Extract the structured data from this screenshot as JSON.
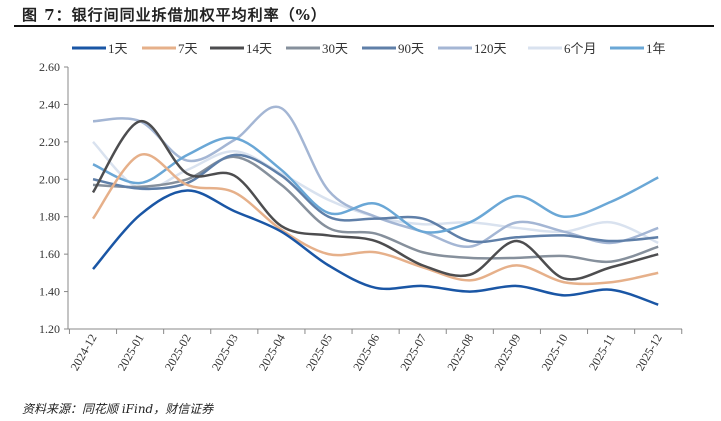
{
  "title": "图 7：银行间同业拆借加权平均利率（%）",
  "source": "资料来源：同花顺 iFind，财信证券",
  "chart_data": {
    "type": "line",
    "title": "",
    "xlabel": "",
    "ylabel": "",
    "ylim": [
      1.2,
      2.6
    ],
    "yticks": [
      "1.20",
      "1.40",
      "1.60",
      "1.80",
      "2.00",
      "2.20",
      "2.40",
      "2.60"
    ],
    "grid": false,
    "legend": "top",
    "categories": [
      "2024-12",
      "2025-01",
      "2025-02",
      "2025-03",
      "2025-04",
      "2025-05",
      "2025-06",
      "2025-07",
      "2025-08",
      "2025-09",
      "2025-10",
      "2025-11",
      "2025-12"
    ],
    "series": [
      {
        "name": "1天",
        "color": "#1a56a5",
        "values": [
          1.52,
          1.81,
          1.94,
          1.83,
          1.72,
          1.54,
          1.42,
          1.43,
          1.4,
          1.43,
          1.38,
          1.41,
          1.33
        ]
      },
      {
        "name": "7天",
        "color": "#e6b08a",
        "values": [
          1.79,
          2.13,
          1.97,
          1.93,
          1.73,
          1.6,
          1.61,
          1.53,
          1.46,
          1.54,
          1.45,
          1.45,
          1.5
        ]
      },
      {
        "name": "14天",
        "color": "#4d4d4f",
        "values": [
          1.93,
          2.31,
          2.03,
          2.02,
          1.75,
          1.7,
          1.67,
          1.54,
          1.49,
          1.67,
          1.47,
          1.53,
          1.6
        ]
      },
      {
        "name": "30天",
        "color": "#86909c",
        "values": [
          1.97,
          1.96,
          2.0,
          2.12,
          1.97,
          1.74,
          1.71,
          1.61,
          1.58,
          1.58,
          1.59,
          1.56,
          1.64
        ]
      },
      {
        "name": "90天",
        "color": "#5f7fa8",
        "values": [
          2.0,
          1.95,
          1.98,
          2.13,
          2.02,
          1.8,
          1.79,
          1.79,
          1.67,
          1.69,
          1.7,
          1.67,
          1.69
        ]
      },
      {
        "name": "120天",
        "color": "#a4b6d4",
        "values": [
          2.31,
          2.31,
          2.1,
          2.21,
          2.38,
          1.94,
          1.8,
          1.72,
          1.64,
          1.77,
          1.72,
          1.66,
          1.74
        ]
      },
      {
        "name": "6个月",
        "color": "#d9e2ef",
        "values": [
          2.2,
          1.95,
          2.05,
          2.15,
          2.03,
          1.89,
          1.8,
          1.76,
          1.77,
          1.74,
          1.72,
          1.77,
          1.66
        ]
      },
      {
        "name": "1年",
        "color": "#6aa7d6",
        "values": [
          2.08,
          1.98,
          2.13,
          2.22,
          2.05,
          1.82,
          1.87,
          1.72,
          1.77,
          1.91,
          1.8,
          1.88,
          2.01
        ]
      }
    ]
  }
}
